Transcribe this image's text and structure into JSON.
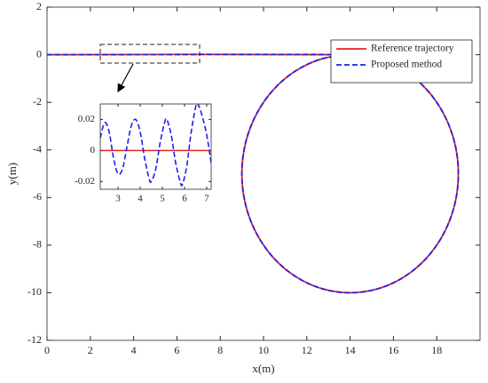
{
  "chart_data": [
    {
      "type": "line",
      "xlabel": "x(m)",
      "ylabel": "y(m)",
      "xlim": [
        0,
        20
      ],
      "ylim": [
        -12,
        2
      ],
      "xticks": [
        0,
        2,
        4,
        6,
        8,
        10,
        12,
        14,
        16,
        18
      ],
      "yticks": [
        -12,
        -10,
        -8,
        -6,
        -4,
        -2,
        0,
        2
      ],
      "legend": "upper right",
      "series": [
        {
          "name": "Reference trajectory",
          "color": "#e8231f",
          "dash": "solid",
          "x": [
            0,
            14,
            15.294,
            16.5,
            17.536,
            18.33,
            18.83,
            19,
            18.83,
            18.33,
            17.536,
            16.5,
            15.294,
            14,
            12.706,
            11.5,
            10.464,
            9.67,
            9.17,
            9,
            9.17,
            9.67,
            10.464,
            11.5,
            12.706,
            14
          ],
          "values": [
            0,
            0,
            -0.17,
            -0.67,
            -1.464,
            -2.5,
            -3.706,
            -5,
            -6.294,
            -7.5,
            -8.536,
            -9.33,
            -9.83,
            -10,
            -9.83,
            -9.33,
            -8.536,
            -7.5,
            -6.294,
            -5,
            -3.706,
            -2.5,
            -1.464,
            -0.67,
            -0.17,
            0
          ]
        },
        {
          "name": "Proposed method",
          "color": "#1f1fef",
          "dash": "dashed",
          "x": [
            0,
            14,
            15.294,
            16.5,
            17.536,
            18.33,
            18.83,
            19,
            18.83,
            18.33,
            17.536,
            16.5,
            15.294,
            14,
            12.706,
            11.5,
            10.464,
            9.67,
            9.17,
            9,
            9.17,
            9.67,
            10.464,
            11.5,
            12.706,
            14
          ],
          "values": [
            0,
            0,
            -0.17,
            -0.67,
            -1.464,
            -2.5,
            -3.706,
            -5,
            -6.294,
            -7.5,
            -8.536,
            -9.33,
            -9.83,
            -10,
            -9.83,
            -9.33,
            -8.536,
            -7.5,
            -6.294,
            -5,
            -3.706,
            -2.5,
            -1.464,
            -0.67,
            -0.17,
            0
          ]
        }
      ]
    },
    {
      "type": "line",
      "xlim": [
        2.2,
        7.2
      ],
      "ylim": [
        -0.025,
        0.03
      ],
      "xticks": [
        3,
        4,
        5,
        6,
        7
      ],
      "yticks": [
        -0.02,
        0,
        0.02
      ],
      "series": [
        {
          "color": "#e8231f",
          "dash": "solid",
          "x": [
            2.2,
            7.2
          ],
          "values": [
            0,
            0
          ]
        },
        {
          "color": "#1f1fef",
          "dash": "dashed",
          "x": [
            2.2,
            2.4,
            2.6,
            2.8,
            3.0,
            3.2,
            3.4,
            3.6,
            3.8,
            4.0,
            4.2,
            4.4,
            4.5,
            4.7,
            4.9,
            5.1,
            5.2,
            5.4,
            5.6,
            5.8,
            5.9,
            6.1,
            6.3,
            6.5,
            6.6,
            6.8,
            7.0,
            7.2
          ],
          "values": [
            0.008,
            0.018,
            0.012,
            -0.005,
            -0.015,
            -0.012,
            0.002,
            0.016,
            0.02,
            0.012,
            -0.005,
            -0.018,
            -0.02,
            -0.012,
            0.005,
            0.018,
            0.02,
            0.01,
            -0.008,
            -0.02,
            -0.022,
            -0.01,
            0.012,
            0.028,
            0.03,
            0.022,
            0.01,
            -0.008
          ]
        }
      ]
    }
  ]
}
